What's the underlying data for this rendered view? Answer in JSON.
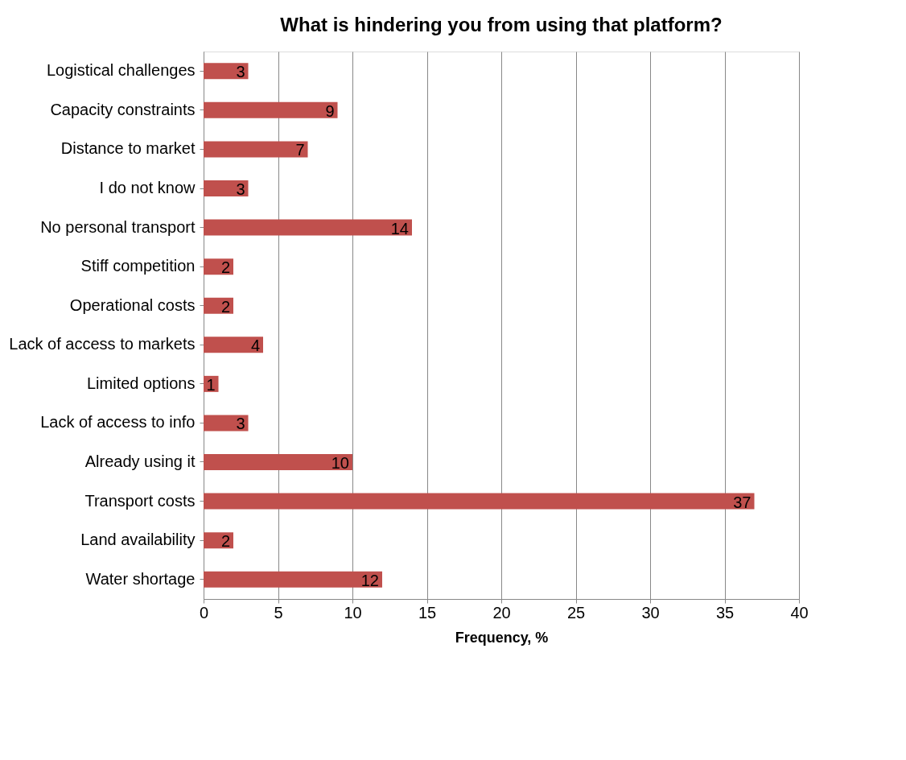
{
  "chart_data": {
    "type": "bar",
    "orientation": "horizontal",
    "title": "What is hindering you from using that platform?",
    "xlabel": "Frequency, %",
    "categories": [
      "Logistical challenges",
      "Capacity constraints",
      "Distance to market",
      "I do not know",
      "No personal transport",
      "Stiff competition",
      "Operational costs",
      "Lack of access to markets",
      "Limited options",
      "Lack of access to info",
      "Already using it",
      "Transport costs",
      "Land availability",
      "Water shortage"
    ],
    "values": [
      3,
      9,
      7,
      3,
      14,
      2,
      2,
      4,
      1,
      3,
      10,
      37,
      2,
      12
    ],
    "color": "#c0504d",
    "xlim": [
      0,
      40
    ],
    "xticks": [
      0,
      5,
      10,
      15,
      20,
      25,
      30,
      35,
      40
    ],
    "grid": "x",
    "data_labels": true
  }
}
